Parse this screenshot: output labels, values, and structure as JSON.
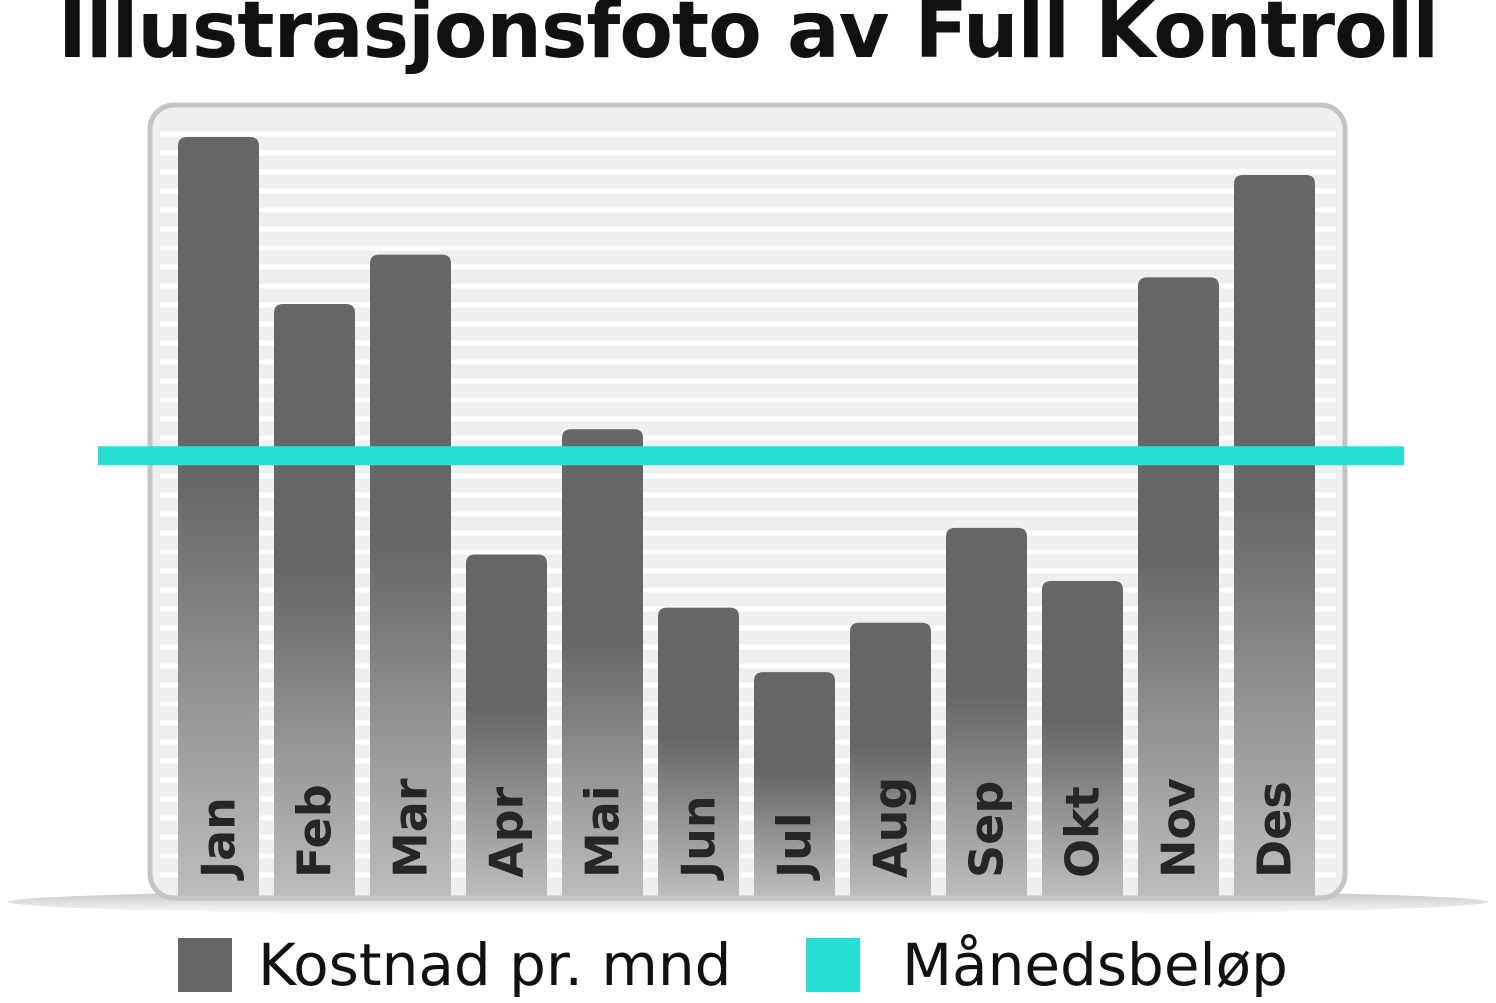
{
  "title": "Illustrasjonsfoto av Full Kontroll",
  "legend": {
    "cost_label": "Kostnad pr. mnd",
    "monthly_label": "Månedsbeløp"
  },
  "colors": {
    "bar": "#666666",
    "bar_light": "#bdbdbd",
    "line": "#26e0d4",
    "frame": "#c4c4c4",
    "panel": "#efefef",
    "title": "#111111"
  },
  "chart_data": {
    "type": "bar",
    "categories": [
      "Jan",
      "Feb",
      "Mar",
      "Apr",
      "Mai",
      "Jun",
      "Jul",
      "Aug",
      "Sep",
      "Okt",
      "Nov",
      "Des"
    ],
    "series": [
      {
        "name": "Kostnad pr. mnd",
        "values": [
          100,
          78,
          84.5,
          45,
          61.5,
          38,
          29.5,
          36,
          48.5,
          41.5,
          81.5,
          95
        ]
      },
      {
        "name": "Månedsbeløp",
        "type": "line",
        "values": [
          58,
          58,
          58,
          58,
          58,
          58,
          58,
          58,
          58,
          58,
          58,
          58
        ]
      }
    ],
    "ylim": [
      0,
      100
    ],
    "grid": true,
    "legend_position": "bottom"
  }
}
